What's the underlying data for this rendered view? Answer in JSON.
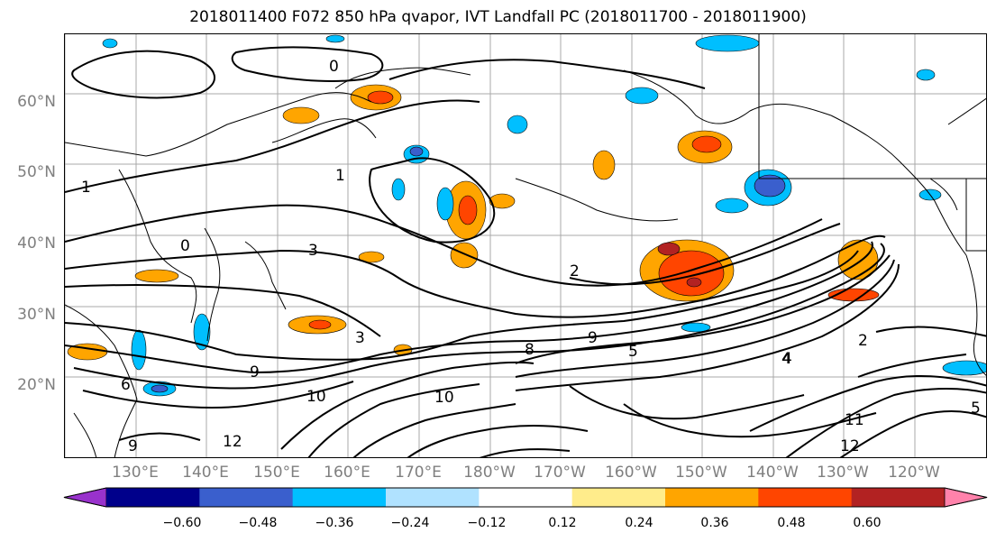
{
  "title": "2018011400 F072 850 hPa qvapor, IVT Landfall PC (2018011700 - 2018011900)",
  "map": {
    "lat_labels": [
      "60°N",
      "50°N",
      "40°N",
      "30°N",
      "20°N"
    ],
    "lon_labels": [
      "130°E",
      "140°E",
      "150°E",
      "160°E",
      "170°E",
      "180°W",
      "170°W",
      "160°W",
      "150°W",
      "140°W",
      "130°W",
      "120°W"
    ],
    "contour_labels": [
      "0",
      "0",
      "1",
      "1",
      "2",
      "3",
      "3",
      "4",
      "5",
      "6",
      "8",
      "9",
      "9",
      "10",
      "10",
      "11",
      "12",
      "12",
      "4",
      "2",
      "9",
      "5"
    ]
  },
  "colorbar": {
    "tick_labels": [
      "−0.60",
      "−0.48",
      "−0.36",
      "−0.24",
      "−0.12",
      "0.12",
      "0.24",
      "0.36",
      "0.48",
      "0.60"
    ],
    "colors": [
      "#9932cc",
      "#00008b",
      "#3a5fcd",
      "#00bfff",
      "#b0e2ff",
      "#ffffff",
      "#ffec8b",
      "#ffa500",
      "#ff4500",
      "#b22222",
      "#ff82ab"
    ]
  },
  "colors": {
    "coast": "#000000",
    "contour": "#000000",
    "grid": "#a9a9a9",
    "axis_text": "#7f7f7f"
  }
}
